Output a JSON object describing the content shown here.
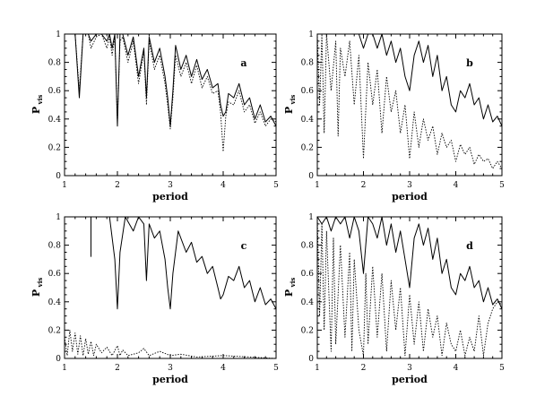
{
  "chart_data": [
    {
      "type": "line",
      "panel_label": "a",
      "xlabel": "period",
      "ylabel": "P",
      "ylabel_sub": "vis",
      "xlim": [
        1,
        5
      ],
      "ylim": [
        0,
        1
      ],
      "xticks": [
        "1",
        "2",
        "3",
        "4",
        "5"
      ],
      "yticks": [
        "0",
        "0.2",
        "0.4",
        "0.6",
        "0.8",
        "1"
      ],
      "series": [
        {
          "style": "solid",
          "x": [
            1.0,
            1.1,
            1.2,
            1.28,
            1.35,
            1.45,
            1.5,
            1.6,
            1.7,
            1.8,
            1.85,
            1.9,
            1.95,
            2.0,
            2.05,
            2.1,
            2.2,
            2.3,
            2.4,
            2.5,
            2.55,
            2.6,
            2.7,
            2.8,
            2.9,
            2.95,
            3.0,
            3.05,
            3.1,
            3.2,
            3.3,
            3.4,
            3.5,
            3.6,
            3.7,
            3.8,
            3.9,
            3.95,
            4.0,
            4.05,
            4.1,
            4.2,
            4.3,
            4.4,
            4.5,
            4.6,
            4.7,
            4.8,
            4.9,
            5.0
          ],
          "y": [
            1.0,
            1.0,
            1.0,
            0.55,
            1.0,
            1.0,
            0.95,
            1.0,
            1.0,
            0.95,
            1.0,
            0.9,
            1.0,
            0.35,
            1.0,
            1.0,
            0.85,
            0.98,
            0.7,
            0.9,
            0.55,
            0.98,
            0.8,
            0.9,
            0.7,
            0.55,
            0.35,
            0.6,
            0.92,
            0.75,
            0.85,
            0.7,
            0.82,
            0.68,
            0.75,
            0.62,
            0.65,
            0.5,
            0.42,
            0.45,
            0.58,
            0.55,
            0.65,
            0.5,
            0.55,
            0.4,
            0.5,
            0.38,
            0.42,
            0.35
          ]
        },
        {
          "style": "dotted",
          "x": [
            1.0,
            1.1,
            1.2,
            1.28,
            1.35,
            1.45,
            1.5,
            1.6,
            1.7,
            1.8,
            1.85,
            1.9,
            1.95,
            2.0,
            2.05,
            2.1,
            2.2,
            2.3,
            2.4,
            2.5,
            2.55,
            2.6,
            2.7,
            2.8,
            2.9,
            2.95,
            3.0,
            3.05,
            3.1,
            3.2,
            3.3,
            3.4,
            3.5,
            3.6,
            3.7,
            3.8,
            3.9,
            3.95,
            4.0,
            4.05,
            4.1,
            4.2,
            4.3,
            4.4,
            4.5,
            4.6,
            4.7,
            4.8,
            4.9,
            5.0
          ],
          "y": [
            1.0,
            1.0,
            1.0,
            0.6,
            1.0,
            1.0,
            0.9,
            0.98,
            1.0,
            0.9,
            0.98,
            0.85,
            0.98,
            0.38,
            0.95,
            0.98,
            0.8,
            0.95,
            0.65,
            0.88,
            0.5,
            0.95,
            0.75,
            0.85,
            0.65,
            0.5,
            0.33,
            0.55,
            0.85,
            0.7,
            0.8,
            0.65,
            0.78,
            0.62,
            0.7,
            0.58,
            0.6,
            0.45,
            0.17,
            0.42,
            0.52,
            0.5,
            0.6,
            0.45,
            0.5,
            0.37,
            0.45,
            0.35,
            0.4,
            0.38
          ]
        }
      ]
    },
    {
      "type": "line",
      "panel_label": "b",
      "xlabel": "period",
      "ylabel": "P",
      "ylabel_sub": "vis",
      "xlim": [
        1,
        5
      ],
      "ylim": [
        0,
        1
      ],
      "xticks": [
        "1",
        "2",
        "3",
        "4",
        "5"
      ],
      "yticks": [
        "0",
        "0.2",
        "0.4",
        "0.6",
        "0.8",
        "1"
      ],
      "series": [
        {
          "style": "solid",
          "x": [
            1.0,
            1.1,
            1.2,
            1.3,
            1.4,
            1.5,
            1.6,
            1.7,
            1.8,
            1.9,
            2.0,
            2.1,
            2.2,
            2.3,
            2.4,
            2.5,
            2.6,
            2.7,
            2.8,
            2.9,
            3.0,
            3.1,
            3.2,
            3.3,
            3.4,
            3.5,
            3.6,
            3.7,
            3.8,
            3.9,
            4.0,
            4.1,
            4.2,
            4.3,
            4.4,
            4.5,
            4.6,
            4.7,
            4.8,
            4.9,
            5.0
          ],
          "y": [
            1.0,
            1.0,
            1.0,
            1.0,
            1.0,
            1.0,
            1.0,
            1.0,
            1.0,
            1.0,
            0.9,
            1.0,
            1.0,
            0.9,
            1.0,
            0.85,
            0.95,
            0.8,
            0.9,
            0.7,
            0.6,
            0.85,
            0.95,
            0.8,
            0.92,
            0.7,
            0.85,
            0.6,
            0.7,
            0.5,
            0.45,
            0.6,
            0.55,
            0.65,
            0.5,
            0.55,
            0.4,
            0.5,
            0.38,
            0.42,
            0.35
          ]
        },
        {
          "style": "dotted",
          "x": [
            1.0,
            1.05,
            1.1,
            1.15,
            1.2,
            1.3,
            1.4,
            1.45,
            1.5,
            1.6,
            1.7,
            1.8,
            1.9,
            2.0,
            2.1,
            2.2,
            2.3,
            2.4,
            2.5,
            2.6,
            2.7,
            2.8,
            2.9,
            3.0,
            3.1,
            3.2,
            3.3,
            3.4,
            3.5,
            3.6,
            3.7,
            3.8,
            3.9,
            4.0,
            4.1,
            4.2,
            4.3,
            4.4,
            4.5,
            4.6,
            4.7,
            4.8,
            4.9,
            5.0
          ],
          "y": [
            1.0,
            0.5,
            1.0,
            0.3,
            1.0,
            0.6,
            0.95,
            0.28,
            0.9,
            0.7,
            0.95,
            0.5,
            0.85,
            0.12,
            0.8,
            0.5,
            0.75,
            0.3,
            0.7,
            0.45,
            0.6,
            0.3,
            0.5,
            0.12,
            0.45,
            0.2,
            0.4,
            0.25,
            0.35,
            0.15,
            0.3,
            0.2,
            0.25,
            0.1,
            0.22,
            0.15,
            0.2,
            0.08,
            0.15,
            0.1,
            0.12,
            0.05,
            0.1,
            0.05
          ]
        }
      ]
    },
    {
      "type": "line",
      "panel_label": "c",
      "xlabel": "period",
      "ylabel": "P",
      "ylabel_sub": "vis",
      "xlim": [
        1,
        5
      ],
      "ylim": [
        0,
        1
      ],
      "xticks": [
        "1",
        "2",
        "3",
        "4",
        "5"
      ],
      "yticks": [
        "0",
        "0.2",
        "0.4",
        "0.6",
        "0.8",
        "1"
      ],
      "series": [
        {
          "style": "solid",
          "x": [
            1.0,
            1.5,
            1.5,
            1.5,
            1.85,
            1.95,
            2.0,
            2.05,
            2.15,
            2.3,
            2.4,
            2.5,
            2.55,
            2.6,
            2.7,
            2.8,
            2.9,
            2.95,
            3.0,
            3.05,
            3.15,
            3.3,
            3.4,
            3.5,
            3.6,
            3.7,
            3.8,
            3.9,
            3.95,
            4.0,
            4.1,
            4.2,
            4.3,
            4.4,
            4.5,
            4.6,
            4.7,
            4.8,
            4.9,
            5.0
          ],
          "y": [
            1.0,
            1.0,
            0.72,
            1.0,
            1.0,
            0.7,
            0.35,
            0.75,
            1.0,
            0.9,
            1.0,
            0.95,
            0.55,
            0.95,
            0.85,
            0.9,
            0.7,
            0.5,
            0.35,
            0.6,
            0.9,
            0.75,
            0.82,
            0.68,
            0.72,
            0.6,
            0.65,
            0.5,
            0.42,
            0.45,
            0.58,
            0.55,
            0.65,
            0.5,
            0.55,
            0.4,
            0.5,
            0.38,
            0.42,
            0.35
          ]
        },
        {
          "style": "dotted",
          "x": [
            1.0,
            1.05,
            1.1,
            1.15,
            1.2,
            1.25,
            1.3,
            1.35,
            1.4,
            1.45,
            1.5,
            1.55,
            1.6,
            1.7,
            1.8,
            1.9,
            2.0,
            2.05,
            2.1,
            2.2,
            2.4,
            2.5,
            2.6,
            2.8,
            3.0,
            3.2,
            3.5,
            4.0,
            4.5,
            5.0
          ],
          "y": [
            0.15,
            0.02,
            0.2,
            0.05,
            0.18,
            0.03,
            0.16,
            0.02,
            0.14,
            0.03,
            0.12,
            0.02,
            0.1,
            0.04,
            0.08,
            0.02,
            0.09,
            0.02,
            0.06,
            0.02,
            0.04,
            0.07,
            0.02,
            0.05,
            0.02,
            0.03,
            0.01,
            0.02,
            0.01,
            0.0
          ]
        }
      ]
    },
    {
      "type": "line",
      "panel_label": "d",
      "xlabel": "period",
      "ylabel": "P",
      "ylabel_sub": "vis",
      "xlim": [
        1,
        5
      ],
      "ylim": [
        0,
        1
      ],
      "xticks": [
        "1",
        "2",
        "3",
        "4",
        "5"
      ],
      "yticks": [
        "0",
        "0.2",
        "0.4",
        "0.6",
        "0.8",
        "1"
      ],
      "series": [
        {
          "style": "solid",
          "x": [
            1.0,
            1.1,
            1.2,
            1.3,
            1.4,
            1.5,
            1.6,
            1.7,
            1.8,
            1.9,
            2.0,
            2.1,
            2.2,
            2.3,
            2.4,
            2.5,
            2.6,
            2.7,
            2.8,
            2.9,
            3.0,
            3.1,
            3.2,
            3.3,
            3.4,
            3.5,
            3.6,
            3.7,
            3.8,
            3.9,
            4.0,
            4.1,
            4.2,
            4.3,
            4.4,
            4.5,
            4.6,
            4.7,
            4.8,
            4.9,
            5.0
          ],
          "y": [
            1.0,
            0.95,
            1.0,
            0.9,
            1.0,
            0.95,
            1.0,
            0.85,
            1.0,
            0.9,
            0.6,
            1.0,
            0.95,
            0.85,
            1.0,
            0.8,
            0.95,
            0.75,
            0.9,
            0.7,
            0.5,
            0.85,
            0.95,
            0.8,
            0.92,
            0.7,
            0.85,
            0.6,
            0.7,
            0.5,
            0.45,
            0.6,
            0.55,
            0.65,
            0.5,
            0.55,
            0.4,
            0.5,
            0.38,
            0.42,
            0.35
          ]
        },
        {
          "style": "dotted",
          "x": [
            1.0,
            1.05,
            1.1,
            1.15,
            1.2,
            1.3,
            1.35,
            1.4,
            1.5,
            1.6,
            1.7,
            1.75,
            1.8,
            1.9,
            2.0,
            2.05,
            2.1,
            2.2,
            2.3,
            2.4,
            2.5,
            2.6,
            2.7,
            2.8,
            2.9,
            3.0,
            3.1,
            3.2,
            3.3,
            3.4,
            3.5,
            3.6,
            3.7,
            3.8,
            3.9,
            4.0,
            4.1,
            4.2,
            4.3,
            4.4,
            4.5,
            4.6,
            4.7,
            4.8,
            4.9,
            5.0
          ],
          "y": [
            1.0,
            0.3,
            0.95,
            0.2,
            0.9,
            0.05,
            0.85,
            0.1,
            0.8,
            0.15,
            0.75,
            0.05,
            0.7,
            0.2,
            0.02,
            0.6,
            0.1,
            0.65,
            0.15,
            0.6,
            0.05,
            0.55,
            0.2,
            0.5,
            0.02,
            0.45,
            0.1,
            0.4,
            0.05,
            0.35,
            0.15,
            0.3,
            0.02,
            0.25,
            0.1,
            0.05,
            0.2,
            0.02,
            0.15,
            0.05,
            0.3,
            0.02,
            0.25,
            0.35,
            0.4,
            0.38
          ]
        }
      ]
    }
  ]
}
